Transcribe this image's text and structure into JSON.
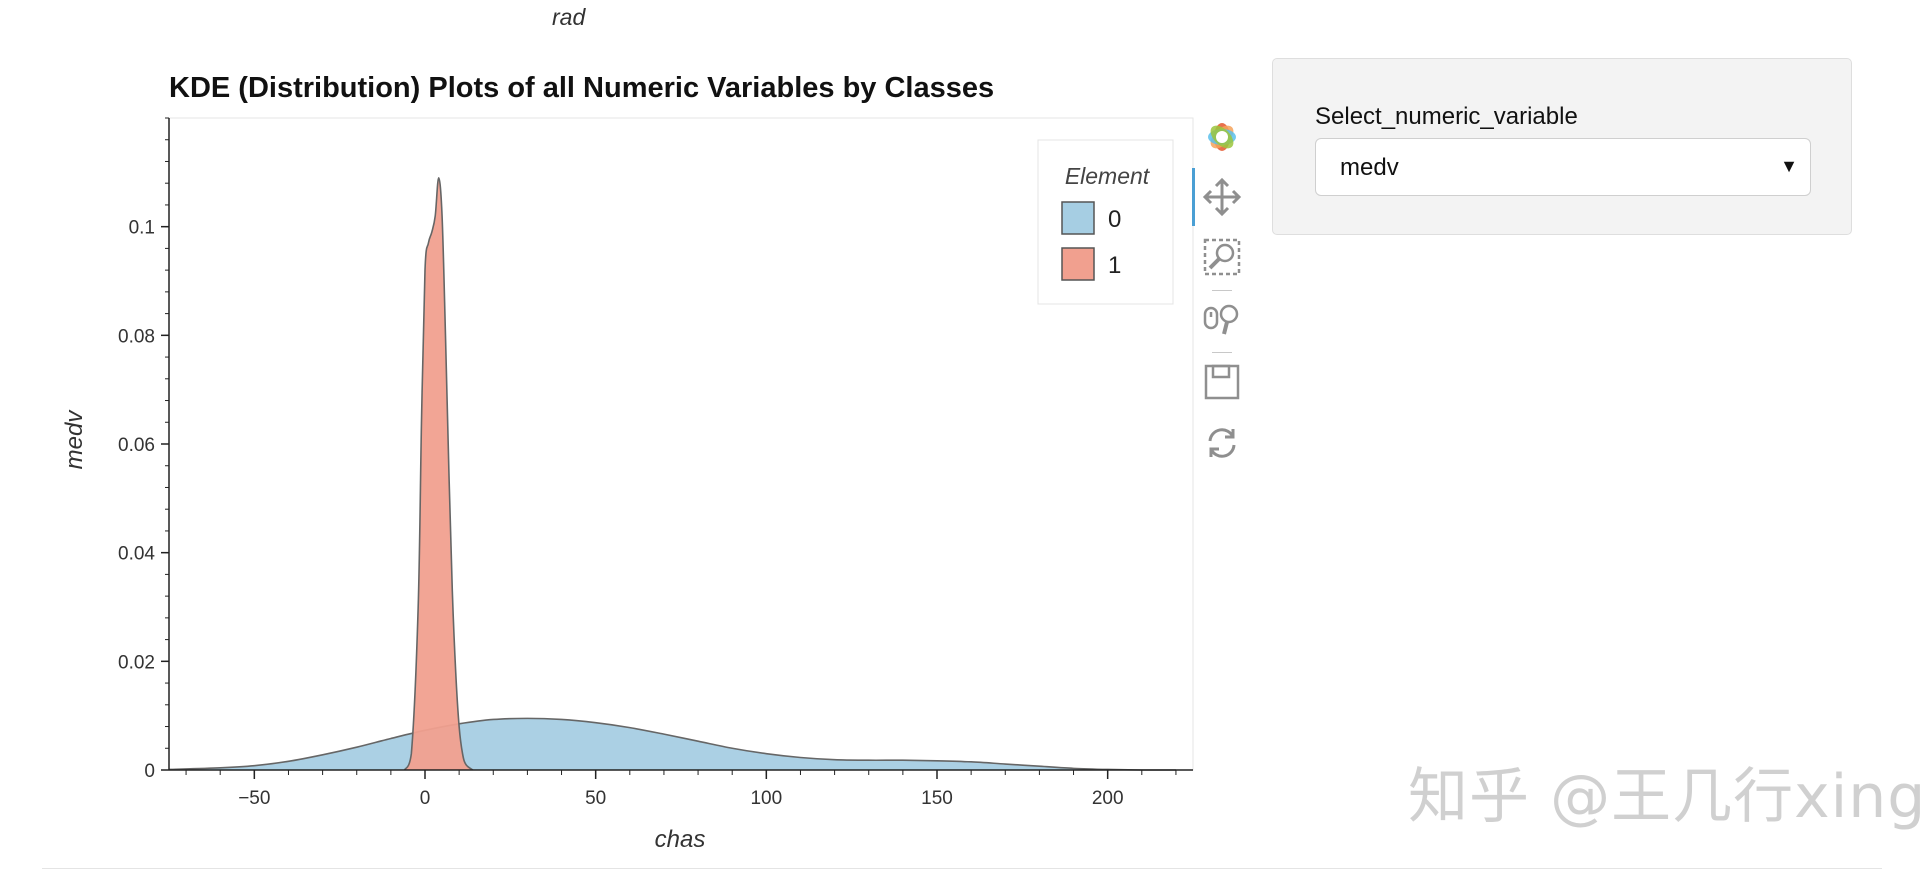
{
  "top_label": "rad",
  "widget": {
    "label": "Select_numeric_variable",
    "selected": "medv"
  },
  "toolbar": {
    "tools": [
      "bokeh-logo-icon",
      "pan-icon",
      "box-zoom-icon",
      "wheel-zoom-icon",
      "save-icon",
      "reset-icon"
    ]
  },
  "watermark": "知乎 @王几行xing",
  "chart_data": {
    "type": "area",
    "title": "KDE (Distribution) Plots of all Numeric Variables by Classes",
    "xlabel": "chas",
    "ylabel": "medv",
    "xlim": [
      -75,
      225
    ],
    "ylim": [
      0,
      0.12
    ],
    "x_ticks": [
      -50,
      0,
      50,
      100,
      150,
      200
    ],
    "x_tick_labels": [
      "−50",
      "0",
      "50",
      "100",
      "150",
      "200"
    ],
    "y_ticks": [
      0,
      0.02,
      0.04,
      0.06,
      0.08,
      0.1
    ],
    "y_tick_labels": [
      "0",
      "0.02",
      "0.04",
      "0.06",
      "0.08",
      "0.1"
    ],
    "grid": false,
    "legend": {
      "title": "Element",
      "position": "top-right"
    },
    "series": [
      {
        "name": "0",
        "color": "#a6cee3",
        "x": [
          -75,
          -60,
          -50,
          -40,
          -30,
          -20,
          -10,
          0,
          10,
          20,
          30,
          40,
          50,
          60,
          70,
          80,
          90,
          100,
          110,
          120,
          130,
          140,
          150,
          160,
          170,
          180,
          190,
          200,
          210,
          220
        ],
        "y": [
          0.0001,
          0.0004,
          0.0008,
          0.0016,
          0.0028,
          0.0042,
          0.0058,
          0.0073,
          0.0085,
          0.0093,
          0.0095,
          0.0093,
          0.0087,
          0.0078,
          0.0066,
          0.0053,
          0.004,
          0.003,
          0.0023,
          0.0019,
          0.0018,
          0.0018,
          0.0017,
          0.0015,
          0.0011,
          0.0007,
          0.0003,
          0.0001,
          0.0,
          0.0
        ]
      },
      {
        "name": "1",
        "color": "#f1a08f",
        "x": [
          -6,
          -4,
          -2,
          -1,
          0,
          1,
          2,
          3,
          4,
          5,
          6,
          7,
          8,
          9,
          10,
          11,
          12,
          14
        ],
        "y": [
          0.0,
          0.003,
          0.03,
          0.065,
          0.092,
          0.097,
          0.099,
          0.102,
          0.109,
          0.102,
          0.08,
          0.055,
          0.033,
          0.018,
          0.008,
          0.003,
          0.001,
          0.0
        ]
      }
    ]
  }
}
